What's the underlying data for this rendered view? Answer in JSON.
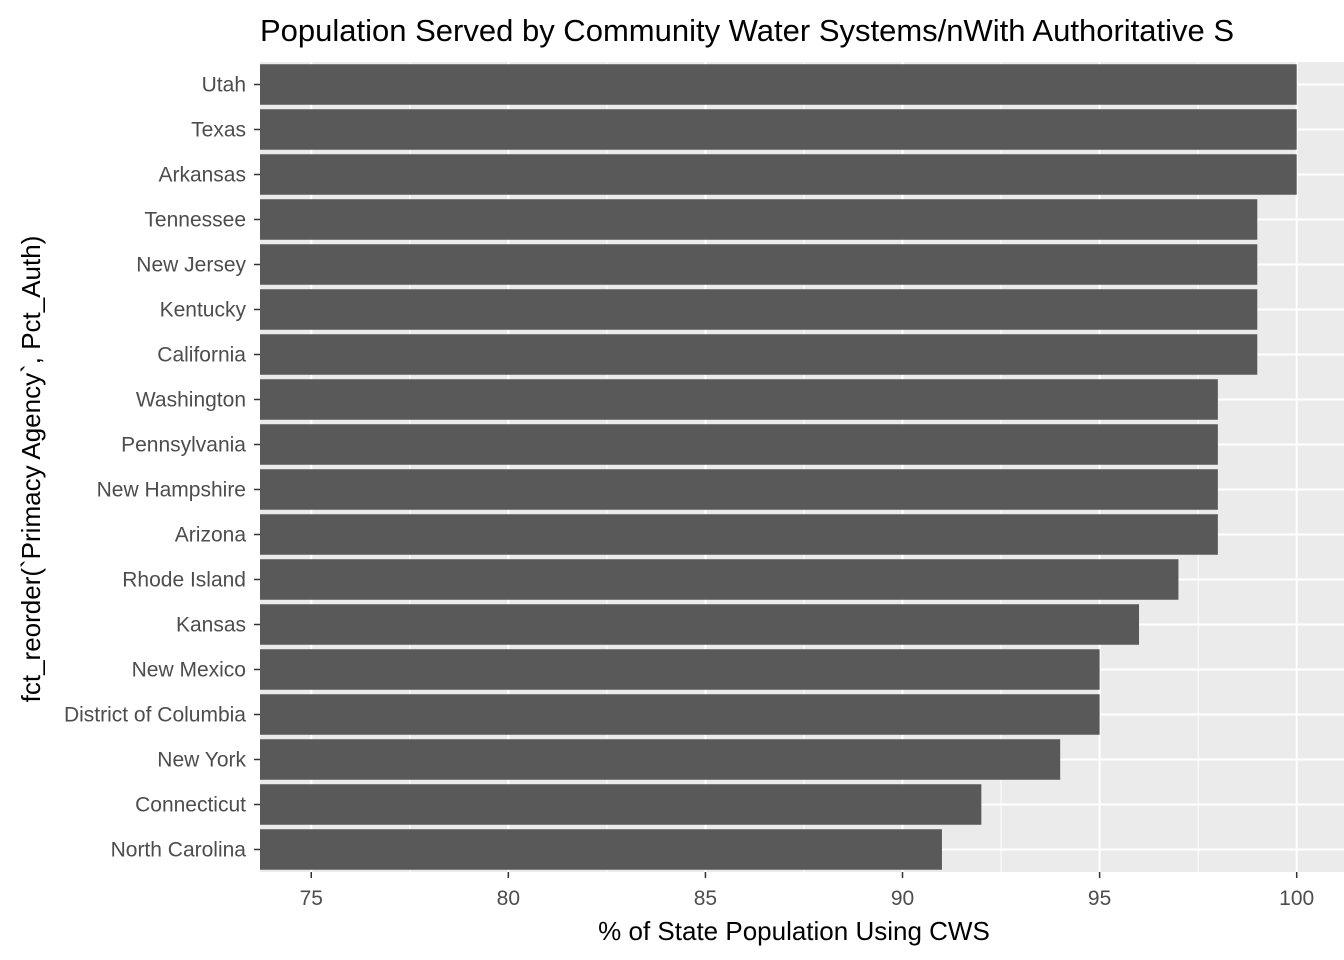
{
  "chart_data": {
    "type": "bar",
    "orientation": "horizontal",
    "title": "Population Served by Community Water Systems/nWith Authoritative S",
    "xlabel": "% of State Population Using CWS",
    "ylabel": "fct_reorder(`Primacy Agency`, Pct_Auth)",
    "xlim": [
      73.7,
      101.2
    ],
    "x_ticks": [
      75,
      80,
      85,
      90,
      95,
      100
    ],
    "categories": [
      "Utah",
      "Texas",
      "Arkansas",
      "Tennessee",
      "New Jersey",
      "Kentucky",
      "California",
      "Washington",
      "Pennsylvania",
      "New Hampshire",
      "Arizona",
      "Rhode Island",
      "Kansas",
      "New Mexico",
      "District of Columbia",
      "New York",
      "Connecticut",
      "North Carolina"
    ],
    "values": [
      100,
      100,
      100,
      99,
      99,
      99,
      99,
      98,
      98,
      98,
      98,
      97,
      96,
      95,
      95,
      94,
      92,
      91
    ],
    "grid": true,
    "legend": "none",
    "colors": {
      "bar": "#595959",
      "panel": "#ebebeb",
      "grid_major": "#ffffff",
      "tick_text": "#4d4d4d"
    }
  }
}
